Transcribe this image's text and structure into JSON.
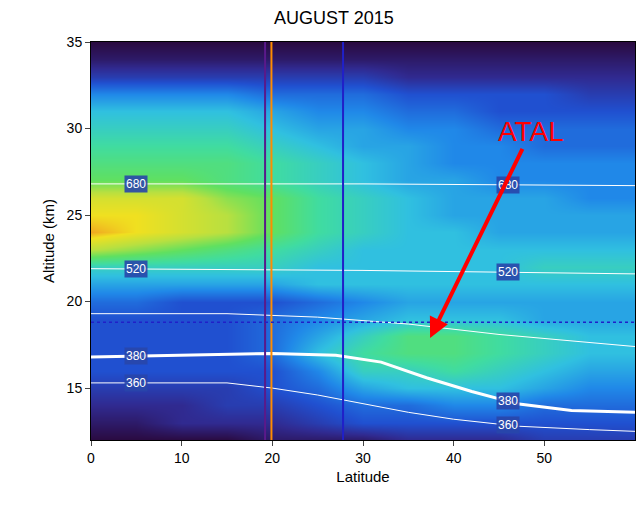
{
  "chart_data": {
    "type": "heatmap",
    "title": "AUGUST 2015",
    "x_label": "Latitude",
    "y_label": "Altitude (km)",
    "xlim": [
      0,
      60
    ],
    "ylim": [
      12,
      35
    ],
    "xticks": [
      0,
      10,
      20,
      30,
      40,
      50
    ],
    "yticks": [
      15,
      20,
      25,
      30,
      35
    ],
    "zlim": [
      0,
      10
    ],
    "x": [
      0,
      5,
      10,
      15,
      20,
      25,
      30,
      35,
      40,
      45,
      50,
      55,
      60
    ],
    "y": [
      12,
      13,
      14,
      15,
      16,
      17,
      18,
      19,
      20,
      21,
      22,
      23,
      24,
      25,
      26,
      27,
      28,
      29,
      30,
      31,
      32,
      33,
      34,
      35
    ],
    "cells": [
      [
        1,
        1,
        1,
        1,
        1.5,
        1.5,
        1.5,
        2,
        2,
        2,
        2.5,
        2.5,
        2.5
      ],
      [
        1.5,
        1.5,
        2,
        2,
        2,
        2.5,
        3,
        3,
        3,
        3,
        3,
        3,
        3
      ],
      [
        2,
        2,
        2,
        2.5,
        2.5,
        3,
        3.5,
        3.5,
        4,
        4,
        3.5,
        3.5,
        3.5
      ],
      [
        2.5,
        2.5,
        2.5,
        2.5,
        3,
        3.5,
        4.5,
        5,
        5,
        5,
        4.5,
        4,
        4
      ],
      [
        3,
        3,
        3,
        3,
        3,
        4,
        5.5,
        5.5,
        6,
        5.5,
        5,
        4.5,
        4.5
      ],
      [
        3,
        3,
        3,
        3,
        3.5,
        5,
        6,
        6.5,
        6.5,
        6,
        5.5,
        5,
        5
      ],
      [
        3,
        3,
        3,
        3,
        3.5,
        4.5,
        5.5,
        6.5,
        6.5,
        6,
        5.5,
        5,
        5
      ],
      [
        3,
        3,
        3,
        3,
        3.5,
        4,
        4.5,
        5,
        5,
        5,
        4.5,
        4.5,
        4.5
      ],
      [
        3.5,
        3.5,
        3,
        3,
        3,
        3.5,
        4,
        4.5,
        4.5,
        4.5,
        4.5,
        4.5,
        4.5
      ],
      [
        4.5,
        4.5,
        4.5,
        4.5,
        4.5,
        5,
        5,
        5,
        5,
        5,
        5,
        5,
        5
      ],
      [
        5.5,
        5.5,
        5.5,
        5.5,
        5.5,
        5,
        5,
        5,
        5,
        5,
        5.5,
        5.5,
        5.5
      ],
      [
        8,
        7.5,
        7,
        6.5,
        6,
        5.5,
        5,
        5,
        5,
        5,
        5,
        5,
        5
      ],
      [
        9.5,
        9,
        8.5,
        8,
        7,
        6,
        5.5,
        5,
        5,
        4.5,
        4.5,
        4.5,
        4.5
      ],
      [
        9,
        9,
        8.5,
        8,
        7,
        6,
        5.5,
        5,
        4.5,
        4.5,
        4.5,
        4.5,
        4.5
      ],
      [
        8.5,
        8.5,
        8.5,
        7.5,
        7,
        6,
        5.5,
        5,
        4.5,
        4.5,
        4.5,
        4,
        4
      ],
      [
        7,
        7,
        7,
        6.5,
        6,
        5.5,
        5,
        4.5,
        4.5,
        4,
        4,
        4,
        4
      ],
      [
        6.5,
        6.5,
        6.5,
        6.5,
        6,
        5.5,
        5,
        4.5,
        4,
        4,
        4,
        4,
        4
      ],
      [
        6,
        6,
        6,
        6,
        5.5,
        5,
        4.5,
        4.5,
        4,
        4,
        3.5,
        3.5,
        3.5
      ],
      [
        5.5,
        5.5,
        5.5,
        5.5,
        5,
        4.5,
        4.5,
        4,
        4,
        3.5,
        3.5,
        3.5,
        3.5
      ],
      [
        5,
        5,
        5,
        5,
        4.5,
        4,
        4,
        3.5,
        3.5,
        3,
        3,
        3,
        3
      ],
      [
        4,
        4,
        4,
        4,
        3.5,
        3.5,
        3.5,
        3,
        3,
        3,
        3,
        2.5,
        2.5
      ],
      [
        2.5,
        2.5,
        2.5,
        2.5,
        2.5,
        2.5,
        2.5,
        2,
        2,
        2,
        2,
        2,
        2
      ],
      [
        1.5,
        1.5,
        1.5,
        1.5,
        1.5,
        1.5,
        1.5,
        1.5,
        1.5,
        1.5,
        1.5,
        1.5,
        1.5
      ],
      [
        1,
        1,
        1,
        1,
        1,
        1,
        1,
        1,
        1,
        1,
        1,
        1,
        1
      ]
    ],
    "series": [
      {
        "name": "360",
        "type": "line",
        "color": "#ffffff",
        "line_style": "solid",
        "x": [
          0,
          15,
          20,
          25,
          30,
          35,
          40,
          47,
          55,
          60
        ],
        "values": [
          15.3,
          15.3,
          15.0,
          14.6,
          14.1,
          13.6,
          13.2,
          12.8,
          12.6,
          12.5
        ]
      },
      {
        "name": "380",
        "type": "line",
        "color": "#ffffff",
        "line_style": "bold",
        "x": [
          0,
          10,
          20,
          27,
          32,
          37,
          42,
          47,
          53,
          60
        ],
        "values": [
          16.8,
          16.9,
          17.0,
          16.9,
          16.5,
          15.6,
          14.8,
          14.1,
          13.7,
          13.6
        ]
      },
      {
        "type": "line",
        "color": "#ffffff",
        "line_style": "solid",
        "x": [
          0,
          15,
          25,
          35,
          45,
          60
        ],
        "values": [
          19.3,
          19.3,
          19.1,
          18.7,
          18.1,
          17.4
        ]
      },
      {
        "name": "520",
        "type": "line",
        "color": "#ffffff",
        "line_style": "solid",
        "x": [
          0,
          30,
          60
        ],
        "values": [
          21.9,
          21.8,
          21.6
        ]
      },
      {
        "name": "680",
        "type": "line",
        "color": "#ffffff",
        "line_style": "solid",
        "x": [
          0,
          30,
          60
        ],
        "values": [
          26.8,
          26.8,
          26.7
        ]
      }
    ],
    "vlines": [
      {
        "x": 19.2,
        "color": "#5a1a8a",
        "line_style": "solid"
      },
      {
        "x": 19.9,
        "color": "#ff8c00",
        "line_style": "solid"
      },
      {
        "x": 27.8,
        "color": "#2020c8",
        "line_style": "solid"
      }
    ],
    "hlines": [
      {
        "y": 18.8,
        "color": "#2020c8",
        "line_style": "dot"
      }
    ],
    "annotations": [
      {
        "text": "ATAL",
        "color": "#ff0000",
        "x": 37.4,
        "y": 17.9,
        "text_x": 48.5,
        "text_y": 29.8
      }
    ],
    "grid": false,
    "legend": false
  }
}
